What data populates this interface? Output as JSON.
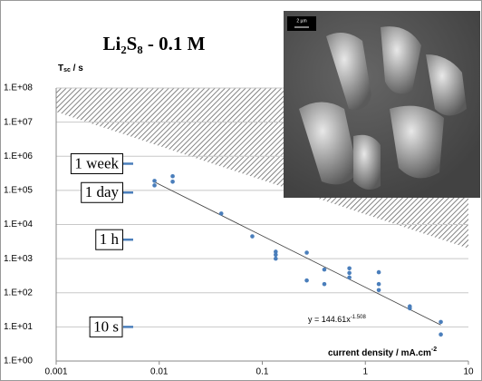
{
  "chart_data": {
    "type": "scatter",
    "title": "Li₂S₈ - 0.1 M",
    "y_label": [
      "T",
      "sc",
      "  /  s"
    ],
    "x_label": [
      "current density  /  mA.cm",
      "-2"
    ],
    "annotation": [
      "y = 144.61x",
      "-1.508"
    ],
    "log_x": true,
    "log_y": true,
    "grid": true,
    "xlim": [
      0.001,
      10
    ],
    "xticks": [
      0.001,
      0.01,
      0.1,
      1,
      10
    ],
    "ylim": [
      1,
      100000000
    ],
    "yticks": [
      {
        "value": 1,
        "label": "1.E+00"
      },
      {
        "value": 10,
        "label": "1.E+01"
      },
      {
        "value": 100,
        "label": "1.E+02"
      },
      {
        "value": 1000,
        "label": "1.E+03"
      },
      {
        "value": 10000,
        "label": "1.E+04"
      },
      {
        "value": 100000,
        "label": "1.E+05"
      },
      {
        "value": 1000000,
        "label": "1.E+06"
      },
      {
        "value": 10000000,
        "label": "1.E+07"
      },
      {
        "value": 100000000,
        "label": "1.E+08"
      }
    ],
    "series": [
      {
        "color": "#4a7ebb",
        "x": [
          0.009,
          0.009,
          0.0135,
          0.0135,
          0.04,
          0.08,
          0.135,
          0.135,
          0.135,
          0.27,
          0.27,
          0.4,
          0.4,
          0.7,
          0.7,
          0.7,
          1.35,
          1.35,
          1.35,
          2.7,
          2.7,
          5.4,
          5.4
        ],
        "y": [
          190000,
          140000,
          260000,
          180000,
          21000,
          4500,
          1600,
          1300,
          1000,
          1500,
          230,
          480,
          180,
          520,
          380,
          280,
          400,
          180,
          120,
          40,
          35,
          14,
          6
        ]
      }
    ],
    "trendline": {
      "color": "#404040",
      "x": [
        0.009,
        5.4
      ],
      "y": [
        176000,
        11.4
      ]
    },
    "hatched_region": {
      "color": "#555555",
      "x": [
        0.001,
        10
      ],
      "y": [
        20000000,
        2000
      ]
    },
    "time_markers": [
      {
        "label": "1 week",
        "value": 604800
      },
      {
        "label": "1 day",
        "value": 86400
      },
      {
        "label": "1 h",
        "value": 3600
      },
      {
        "label": "10 s",
        "value": 10
      }
    ],
    "marker_color": "#4a7ebb",
    "inset_scale": "2 µm"
  }
}
